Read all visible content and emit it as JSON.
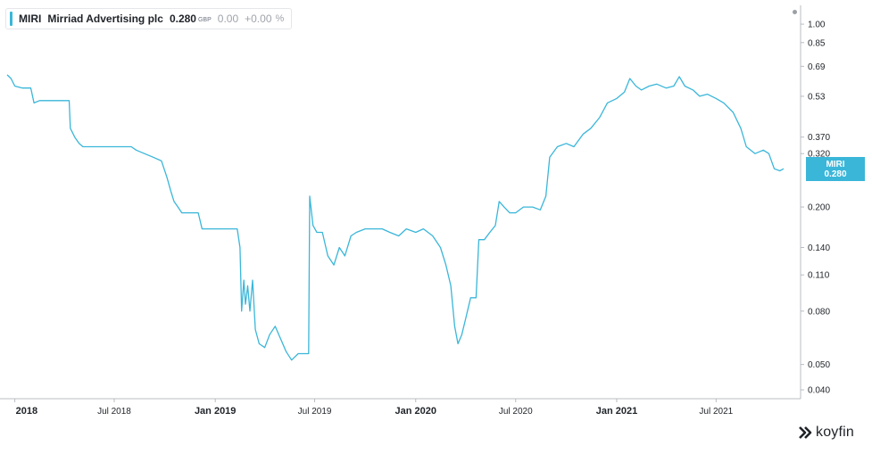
{
  "colors": {
    "series": "#3ab6d9",
    "axis": "#b8bcc2",
    "text": "#1f2328",
    "muted": "#6b7280"
  },
  "legend": {
    "ticker": "MIRI",
    "name": "Mirriad Advertising plc",
    "price": "0.280",
    "currency": "GBP",
    "change": "0.00",
    "change_pct": "+0.00",
    "pct_sign": "%"
  },
  "price_tag": {
    "ticker": "MIRI",
    "value": "0.280"
  },
  "brand": {
    "name": "koyfin",
    "icon": "koyfin-logo-icon"
  },
  "chart_data": {
    "type": "line",
    "y_scale": "log",
    "ylim": [
      0.037,
      1.18
    ],
    "y_ticks": [
      {
        "value": 1.0,
        "label": "1.00"
      },
      {
        "value": 0.85,
        "label": "0.85"
      },
      {
        "value": 0.69,
        "label": "0.69"
      },
      {
        "value": 0.53,
        "label": "0.53"
      },
      {
        "value": 0.37,
        "label": "0.370"
      },
      {
        "value": 0.32,
        "label": "0.320"
      },
      {
        "value": 0.2,
        "label": "0.200"
      },
      {
        "value": 0.14,
        "label": "0.140"
      },
      {
        "value": 0.11,
        "label": "0.110"
      },
      {
        "value": 0.08,
        "label": "0.080"
      },
      {
        "value": 0.05,
        "label": "0.050"
      },
      {
        "value": 0.04,
        "label": "0.040"
      }
    ],
    "x_ticks": [
      {
        "date": "2018-01-01",
        "label": "2018",
        "bold": true
      },
      {
        "date": "2018-07-01",
        "label": "Jul 2018",
        "bold": false
      },
      {
        "date": "2019-01-01",
        "label": "Jan 2019",
        "bold": true
      },
      {
        "date": "2019-07-01",
        "label": "Jul 2019",
        "bold": false
      },
      {
        "date": "2020-01-01",
        "label": "Jan 2020",
        "bold": true
      },
      {
        "date": "2020-07-01",
        "label": "Jul 2020",
        "bold": false
      },
      {
        "date": "2021-01-01",
        "label": "Jan 2021",
        "bold": true
      },
      {
        "date": "2021-07-01",
        "label": "Jul 2021",
        "bold": false
      }
    ],
    "series": [
      {
        "name": "MIRI",
        "points": [
          [
            "2017-12-18",
            0.64
          ],
          [
            "2017-12-25",
            0.62
          ],
          [
            "2018-01-01",
            0.58
          ],
          [
            "2018-01-15",
            0.57
          ],
          [
            "2018-01-30",
            0.57
          ],
          [
            "2018-02-05",
            0.5
          ],
          [
            "2018-02-15",
            0.51
          ],
          [
            "2018-03-15",
            0.51
          ],
          [
            "2018-04-10",
            0.51
          ],
          [
            "2018-04-12",
            0.4
          ],
          [
            "2018-04-20",
            0.37
          ],
          [
            "2018-04-28",
            0.35
          ],
          [
            "2018-05-05",
            0.34
          ],
          [
            "2018-06-01",
            0.34
          ],
          [
            "2018-07-01",
            0.34
          ],
          [
            "2018-08-01",
            0.34
          ],
          [
            "2018-08-10",
            0.33
          ],
          [
            "2018-08-25",
            0.32
          ],
          [
            "2018-09-10",
            0.31
          ],
          [
            "2018-09-25",
            0.3
          ],
          [
            "2018-10-05",
            0.26
          ],
          [
            "2018-10-12",
            0.23
          ],
          [
            "2018-10-18",
            0.21
          ],
          [
            "2018-10-25",
            0.2
          ],
          [
            "2018-11-01",
            0.19
          ],
          [
            "2018-11-10",
            0.19
          ],
          [
            "2018-12-01",
            0.19
          ],
          [
            "2018-12-08",
            0.165
          ],
          [
            "2018-12-20",
            0.165
          ],
          [
            "2019-01-15",
            0.165
          ],
          [
            "2019-02-10",
            0.165
          ],
          [
            "2019-02-15",
            0.14
          ],
          [
            "2019-02-18",
            0.08
          ],
          [
            "2019-02-22",
            0.105
          ],
          [
            "2019-02-25",
            0.085
          ],
          [
            "2019-03-01",
            0.1
          ],
          [
            "2019-03-05",
            0.08
          ],
          [
            "2019-03-10",
            0.105
          ],
          [
            "2019-03-15",
            0.068
          ],
          [
            "2019-03-22",
            0.06
          ],
          [
            "2019-04-01",
            0.058
          ],
          [
            "2019-04-10",
            0.065
          ],
          [
            "2019-04-20",
            0.07
          ],
          [
            "2019-05-01",
            0.062
          ],
          [
            "2019-05-10",
            0.056
          ],
          [
            "2019-05-20",
            0.052
          ],
          [
            "2019-06-01",
            0.055
          ],
          [
            "2019-06-20",
            0.055
          ],
          [
            "2019-06-22",
            0.22
          ],
          [
            "2019-06-28",
            0.17
          ],
          [
            "2019-07-05",
            0.16
          ],
          [
            "2019-07-15",
            0.16
          ],
          [
            "2019-07-25",
            0.13
          ],
          [
            "2019-08-05",
            0.12
          ],
          [
            "2019-08-15",
            0.14
          ],
          [
            "2019-08-25",
            0.13
          ],
          [
            "2019-09-05",
            0.155
          ],
          [
            "2019-09-15",
            0.16
          ],
          [
            "2019-10-01",
            0.165
          ],
          [
            "2019-10-15",
            0.165
          ],
          [
            "2019-11-01",
            0.165
          ],
          [
            "2019-11-15",
            0.16
          ],
          [
            "2019-12-01",
            0.155
          ],
          [
            "2019-12-15",
            0.165
          ],
          [
            "2020-01-01",
            0.16
          ],
          [
            "2020-01-15",
            0.165
          ],
          [
            "2020-02-01",
            0.155
          ],
          [
            "2020-02-15",
            0.14
          ],
          [
            "2020-02-25",
            0.12
          ],
          [
            "2020-03-05",
            0.1
          ],
          [
            "2020-03-12",
            0.07
          ],
          [
            "2020-03-18",
            0.06
          ],
          [
            "2020-03-25",
            0.065
          ],
          [
            "2020-04-01",
            0.075
          ],
          [
            "2020-04-10",
            0.09
          ],
          [
            "2020-04-20",
            0.09
          ],
          [
            "2020-04-25",
            0.15
          ],
          [
            "2020-05-05",
            0.15
          ],
          [
            "2020-05-15",
            0.16
          ],
          [
            "2020-05-25",
            0.17
          ],
          [
            "2020-06-01",
            0.21
          ],
          [
            "2020-06-10",
            0.2
          ],
          [
            "2020-06-20",
            0.19
          ],
          [
            "2020-07-01",
            0.19
          ],
          [
            "2020-07-15",
            0.2
          ],
          [
            "2020-08-01",
            0.2
          ],
          [
            "2020-08-15",
            0.195
          ],
          [
            "2020-08-25",
            0.22
          ],
          [
            "2020-09-01",
            0.31
          ],
          [
            "2020-09-15",
            0.34
          ],
          [
            "2020-10-01",
            0.35
          ],
          [
            "2020-10-15",
            0.34
          ],
          [
            "2020-11-01",
            0.38
          ],
          [
            "2020-11-15",
            0.4
          ],
          [
            "2020-12-01",
            0.44
          ],
          [
            "2020-12-15",
            0.5
          ],
          [
            "2021-01-01",
            0.52
          ],
          [
            "2021-01-15",
            0.55
          ],
          [
            "2021-01-25",
            0.62
          ],
          [
            "2021-02-05",
            0.58
          ],
          [
            "2021-02-15",
            0.56
          ],
          [
            "2021-03-01",
            0.58
          ],
          [
            "2021-03-15",
            0.59
          ],
          [
            "2021-04-01",
            0.57
          ],
          [
            "2021-04-15",
            0.58
          ],
          [
            "2021-04-25",
            0.63
          ],
          [
            "2021-05-05",
            0.58
          ],
          [
            "2021-05-20",
            0.56
          ],
          [
            "2021-06-01",
            0.53
          ],
          [
            "2021-06-15",
            0.54
          ],
          [
            "2021-07-01",
            0.52
          ],
          [
            "2021-07-15",
            0.5
          ],
          [
            "2021-08-01",
            0.46
          ],
          [
            "2021-08-15",
            0.4
          ],
          [
            "2021-08-25",
            0.34
          ],
          [
            "2021-09-10",
            0.32
          ],
          [
            "2021-09-25",
            0.33
          ],
          [
            "2021-10-05",
            0.32
          ],
          [
            "2021-10-15",
            0.28
          ],
          [
            "2021-10-25",
            0.275
          ],
          [
            "2021-11-01",
            0.28
          ]
        ]
      }
    ]
  }
}
